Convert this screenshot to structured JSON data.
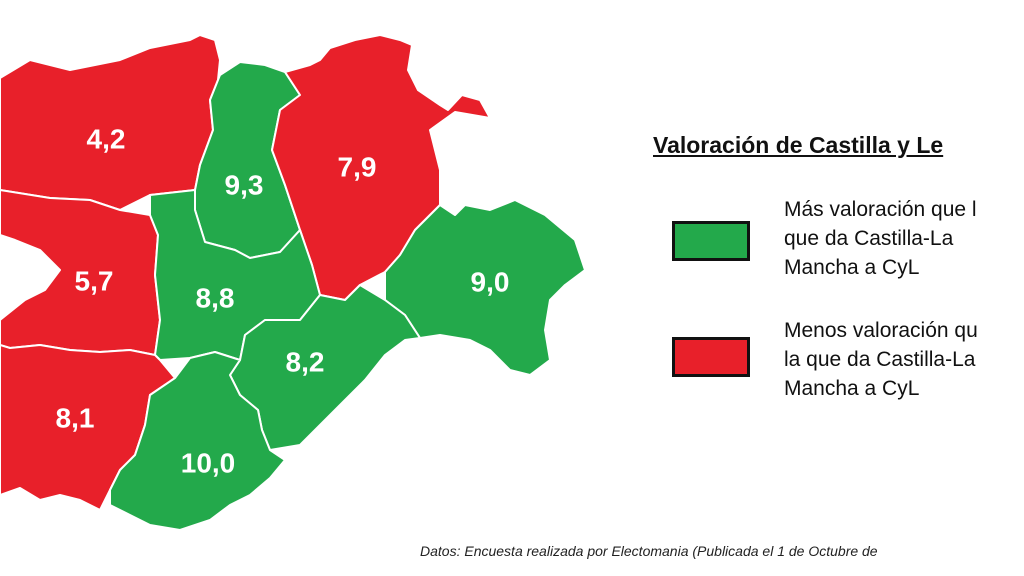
{
  "colors": {
    "higher": "#23a94b",
    "lower": "#e8202a"
  },
  "map": {
    "regions": [
      {
        "id": "leon",
        "value": "4,2",
        "category": "lower"
      },
      {
        "id": "palencia",
        "value": "9,3",
        "category": "higher"
      },
      {
        "id": "burgos",
        "value": "7,9",
        "category": "lower"
      },
      {
        "id": "zamora",
        "value": "5,7",
        "category": "lower"
      },
      {
        "id": "valladolid",
        "value": "8,8",
        "category": "higher"
      },
      {
        "id": "soria",
        "value": "9,0",
        "category": "higher"
      },
      {
        "id": "salamanca",
        "value": "8,1",
        "category": "lower"
      },
      {
        "id": "segovia",
        "value": "8,2",
        "category": "higher"
      },
      {
        "id": "avila",
        "value": "10,0",
        "category": "higher"
      }
    ]
  },
  "legend": {
    "title": "Valoración de Castilla y Le",
    "items": [
      {
        "category": "higher",
        "lines": [
          "Más valoración que l",
          "que da Castilla-La",
          "Mancha a CyL"
        ]
      },
      {
        "category": "lower",
        "lines": [
          "Menos valoración qu",
          "la que da Castilla-La",
          "Mancha a CyL"
        ]
      }
    ]
  },
  "source": "Datos: Encuesta realizada por Electomania (Publicada el 1 de Octubre de"
}
